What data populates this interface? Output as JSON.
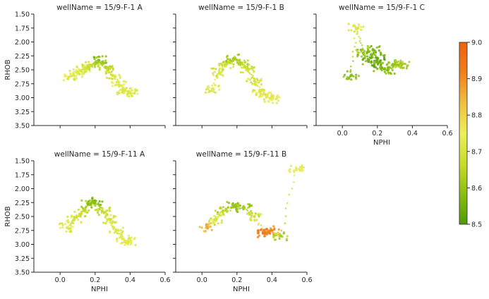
{
  "chart_data": {
    "type": "scatter",
    "facet_prefix": "wellName = ",
    "xlabel": "NPHI",
    "ylabel": "RHOB",
    "xlim": [
      -0.15,
      0.6
    ],
    "ylim": [
      3.5,
      1.5
    ],
    "y_inverted": true,
    "xticks": [
      0.0,
      0.2,
      0.4,
      0.6
    ],
    "xtick_labels": [
      "0.0",
      "0.2",
      "0.4",
      "0.6"
    ],
    "yticks": [
      1.5,
      1.75,
      2.0,
      2.25,
      2.5,
      2.75,
      3.0,
      3.25,
      3.5
    ],
    "ytick_labels": [
      "1.50",
      "1.75",
      "2.00",
      "2.25",
      "2.50",
      "2.75",
      "3.00",
      "3.25",
      "3.50"
    ],
    "colorbar": {
      "range": [
        8.5,
        9.0
      ],
      "ticks": [
        8.5,
        8.6,
        8.7,
        8.8,
        8.9,
        9.0
      ],
      "tick_labels": [
        "8.5",
        "8.6",
        "8.7",
        "8.8",
        "8.9",
        "9.0"
      ],
      "colors": [
        "#4e9a06",
        "#8bbf10",
        "#c8dc28",
        "#ecef5a",
        "#f0c040",
        "#f07f18",
        "#f06010"
      ]
    },
    "grid": false,
    "legend": "none",
    "panels": [
      {
        "name": "15/9-F-1 A",
        "title": "wellName = 15/9-F-1 A",
        "series": [
          {
            "x": [
              0.05,
              0.1,
              0.14,
              0.18,
              0.22,
              0.26,
              0.3,
              0.34,
              0.37,
              0.4
            ],
            "y": [
              2.63,
              2.55,
              2.48,
              2.42,
              2.33,
              2.45,
              2.6,
              2.78,
              2.87,
              2.92
            ],
            "colors": [
              8.72,
              8.72,
              8.7,
              8.66,
              8.58,
              8.65,
              8.7,
              8.72,
              8.72,
              8.72
            ]
          }
        ]
      },
      {
        "name": "15/9-F-1 B",
        "title": "wellName = 15/9-F-1 B",
        "series": [
          {
            "x": [
              0.06,
              0.1,
              0.14,
              0.18,
              0.22,
              0.26,
              0.3,
              0.33,
              0.37,
              0.4
            ],
            "y": [
              2.85,
              2.55,
              2.4,
              2.3,
              2.38,
              2.48,
              2.7,
              2.88,
              2.97,
              3.03
            ],
            "colors": [
              8.73,
              8.7,
              8.68,
              8.62,
              8.64,
              8.68,
              8.7,
              8.72,
              8.73,
              8.74
            ]
          }
        ]
      },
      {
        "name": "15/9-F-1 C",
        "title": "wellName = 15/9-F-1 C",
        "series": [
          {
            "x": [
              0.05,
              0.08,
              0.12,
              0.15,
              0.18,
              0.2,
              0.22,
              0.26,
              0.3,
              0.34
            ],
            "y": [
              2.6,
              1.75,
              2.2,
              2.35,
              2.15,
              2.3,
              2.45,
              2.5,
              2.4,
              2.4
            ],
            "colors": [
              8.58,
              8.72,
              8.6,
              8.55,
              8.57,
              8.54,
              8.55,
              8.58,
              8.6,
              8.62
            ]
          }
        ]
      },
      {
        "name": "15/9-F-11 A",
        "title": "wellName = 15/9-F-11 A",
        "series": [
          {
            "x": [
              0.04,
              0.08,
              0.12,
              0.16,
              0.2,
              0.24,
              0.28,
              0.32,
              0.36,
              0.39
            ],
            "y": [
              2.7,
              2.55,
              2.45,
              2.28,
              2.22,
              2.4,
              2.55,
              2.75,
              2.9,
              2.95
            ],
            "colors": [
              8.72,
              8.7,
              8.68,
              8.6,
              8.57,
              8.66,
              8.7,
              8.72,
              8.73,
              8.73
            ]
          }
        ]
      },
      {
        "name": "15/9-F-11 B",
        "title": "wellName = 15/9-F-11 B",
        "series": [
          {
            "x": [
              0.03,
              0.08,
              0.12,
              0.18,
              0.24,
              0.3,
              0.35,
              0.4,
              0.45,
              0.54
            ],
            "y": [
              2.7,
              2.55,
              2.4,
              2.3,
              2.35,
              2.5,
              2.8,
              2.75,
              2.85,
              1.65
            ],
            "colors": [
              8.86,
              8.7,
              8.66,
              8.6,
              8.62,
              8.68,
              8.93,
              8.92,
              8.62,
              8.74
            ]
          }
        ]
      }
    ]
  }
}
